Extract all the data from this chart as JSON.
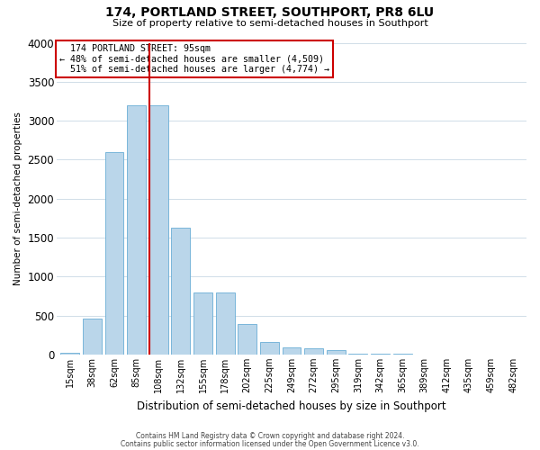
{
  "title": "174, PORTLAND STREET, SOUTHPORT, PR8 6LU",
  "subtitle": "Size of property relative to semi-detached houses in Southport",
  "xlabel": "Distribution of semi-detached houses by size in Southport",
  "ylabel": "Number of semi-detached properties",
  "footer_line1": "Contains HM Land Registry data © Crown copyright and database right 2024.",
  "footer_line2": "Contains public sector information licensed under the Open Government Licence v3.0.",
  "bin_labels": [
    "15sqm",
    "38sqm",
    "62sqm",
    "85sqm",
    "108sqm",
    "132sqm",
    "155sqm",
    "178sqm",
    "202sqm",
    "225sqm",
    "249sqm",
    "272sqm",
    "295sqm",
    "319sqm",
    "342sqm",
    "365sqm",
    "389sqm",
    "412sqm",
    "435sqm",
    "459sqm",
    "482sqm"
  ],
  "bar_values": [
    25,
    460,
    2600,
    3200,
    3200,
    1630,
    800,
    800,
    390,
    155,
    90,
    80,
    60,
    15,
    10,
    10,
    0,
    0,
    0,
    0,
    0
  ],
  "ylim": [
    0,
    4000
  ],
  "yticks": [
    0,
    500,
    1000,
    1500,
    2000,
    2500,
    3000,
    3500,
    4000
  ],
  "bar_color": "#bad6ea",
  "bar_edge_color": "#6aaed6",
  "grid_color": "#d0dde8",
  "property_sqm": 95,
  "property_label": "174 PORTLAND STREET: 95sqm",
  "pct_smaller": 48,
  "count_smaller": 4509,
  "pct_larger": 51,
  "count_larger": 4774,
  "red_line_x": 3.57,
  "annotation_box_color": "#ffffff",
  "annotation_box_edge_color": "#cc0000",
  "red_line_color": "#cc0000",
  "background_color": "#ffffff"
}
